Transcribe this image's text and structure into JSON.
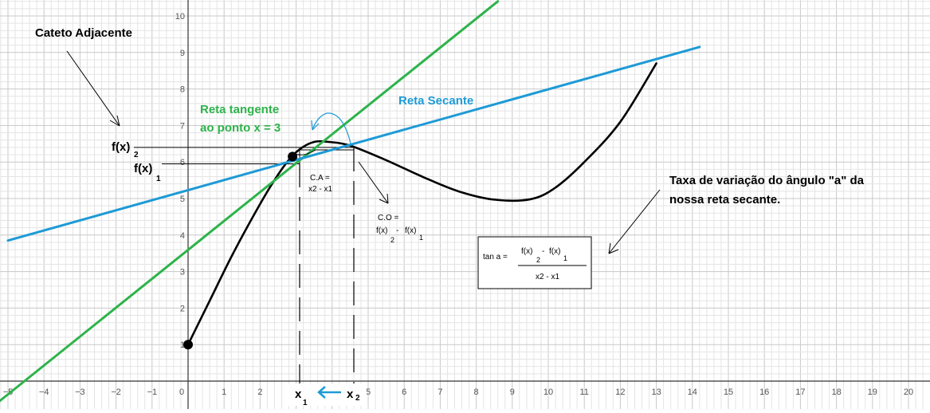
{
  "chart_data": {
    "type": "line",
    "xlim": [
      -5.2,
      20.3
    ],
    "ylim": [
      0,
      10.4
    ],
    "grid": true,
    "x_ticks": [
      -5,
      -4,
      -3,
      -2,
      -1,
      0,
      1,
      2,
      3,
      4,
      5,
      6,
      7,
      8,
      9,
      10,
      11,
      12,
      13,
      14,
      15,
      16,
      17,
      18,
      19,
      20
    ],
    "y_ticks": [
      1,
      2,
      3,
      4,
      5,
      6,
      7,
      8,
      9,
      10
    ],
    "x_tick_labels": [
      "−5",
      "−4",
      "−3",
      "−2",
      "−1",
      "0",
      "1",
      "2",
      "3",
      "4",
      "5",
      "6",
      "7",
      "8",
      "9",
      "10",
      "11",
      "12",
      "13",
      "14",
      "15",
      "16",
      "17",
      "18",
      "19",
      "20"
    ],
    "y_tick_labels": [
      "1",
      "2",
      "3",
      "4",
      "5",
      "6",
      "7",
      "8",
      "9",
      "10"
    ],
    "series": [
      {
        "name": "",
        "color": "#000000",
        "points": [
          [
            0,
            1
          ],
          [
            0.6,
            2.2
          ],
          [
            1.2,
            3.4
          ],
          [
            1.8,
            4.5
          ],
          [
            2.3,
            5.35
          ],
          [
            2.75,
            6.0
          ],
          [
            3.1,
            6.35
          ],
          [
            3.5,
            6.55
          ],
          [
            3.9,
            6.55
          ],
          [
            4.5,
            6.45
          ],
          [
            5.5,
            6.05
          ],
          [
            6.5,
            5.6
          ],
          [
            7.5,
            5.2
          ],
          [
            8.5,
            4.97
          ],
          [
            9.5,
            4.98
          ],
          [
            10.2,
            5.3
          ],
          [
            11.0,
            6.0
          ],
          [
            12.0,
            7.1
          ],
          [
            13.0,
            8.7
          ]
        ]
      },
      {
        "name": "Reta tangente",
        "color": "#2db34a",
        "points": [
          [
            -5.3,
            -0.6
          ],
          [
            8.6,
            10.4
          ]
        ]
      },
      {
        "name": "Reta Secante",
        "color": "#1e9ad6",
        "points": [
          [
            -5.0,
            3.85
          ],
          [
            14.2,
            9.15
          ]
        ]
      }
    ],
    "special_points": [
      {
        "name": "start",
        "x": 0,
        "y": 1
      },
      {
        "name": "x1-point",
        "x": 2.9,
        "y": 6.15
      }
    ],
    "reference_lines": {
      "x1": 3.1,
      "x2": 4.5,
      "fx1": 6.05,
      "fx2": 6.45
    }
  },
  "annotations": {
    "cateto_adjacente": "Cateto Adjacente",
    "reta_tangente_line1": "Reta tangente",
    "reta_tangente_line2": "ao ponto x = 3",
    "reta_secante": "Reta Secante",
    "fx2_main": "f(x)",
    "fx2_sub": "2",
    "fx1_main": "f(x)",
    "fx1_sub": "1",
    "ca_line1": "C.A =",
    "ca_line2": "x2 - x1",
    "co_line1": "C.O =",
    "co_f2": "f(x)",
    "co_sub2": "2",
    "co_minus": "-",
    "co_f1": "f(x)",
    "co_sub1": "1",
    "taxa_line1": "Taxa de variação do ângulo \"a\" da",
    "taxa_line2": "nossa reta secante.",
    "x1_main": "x",
    "x1_sub": "1",
    "x2_main": "x",
    "x2_sub": "2"
  },
  "formula": {
    "lhs": "tan a =",
    "num_f2": "f(x)",
    "num_minus": "-",
    "num_f1": "f(x)",
    "num_sub2": "2",
    "num_sub1": "1",
    "den": "x2 - x1"
  },
  "colors": {
    "curve": "#000000",
    "tangent": "#2db34a",
    "secant": "#1e9ad6",
    "grid_minor": "#e4e4e4",
    "grid_major": "#c8c8c8",
    "axis": "#333333"
  }
}
